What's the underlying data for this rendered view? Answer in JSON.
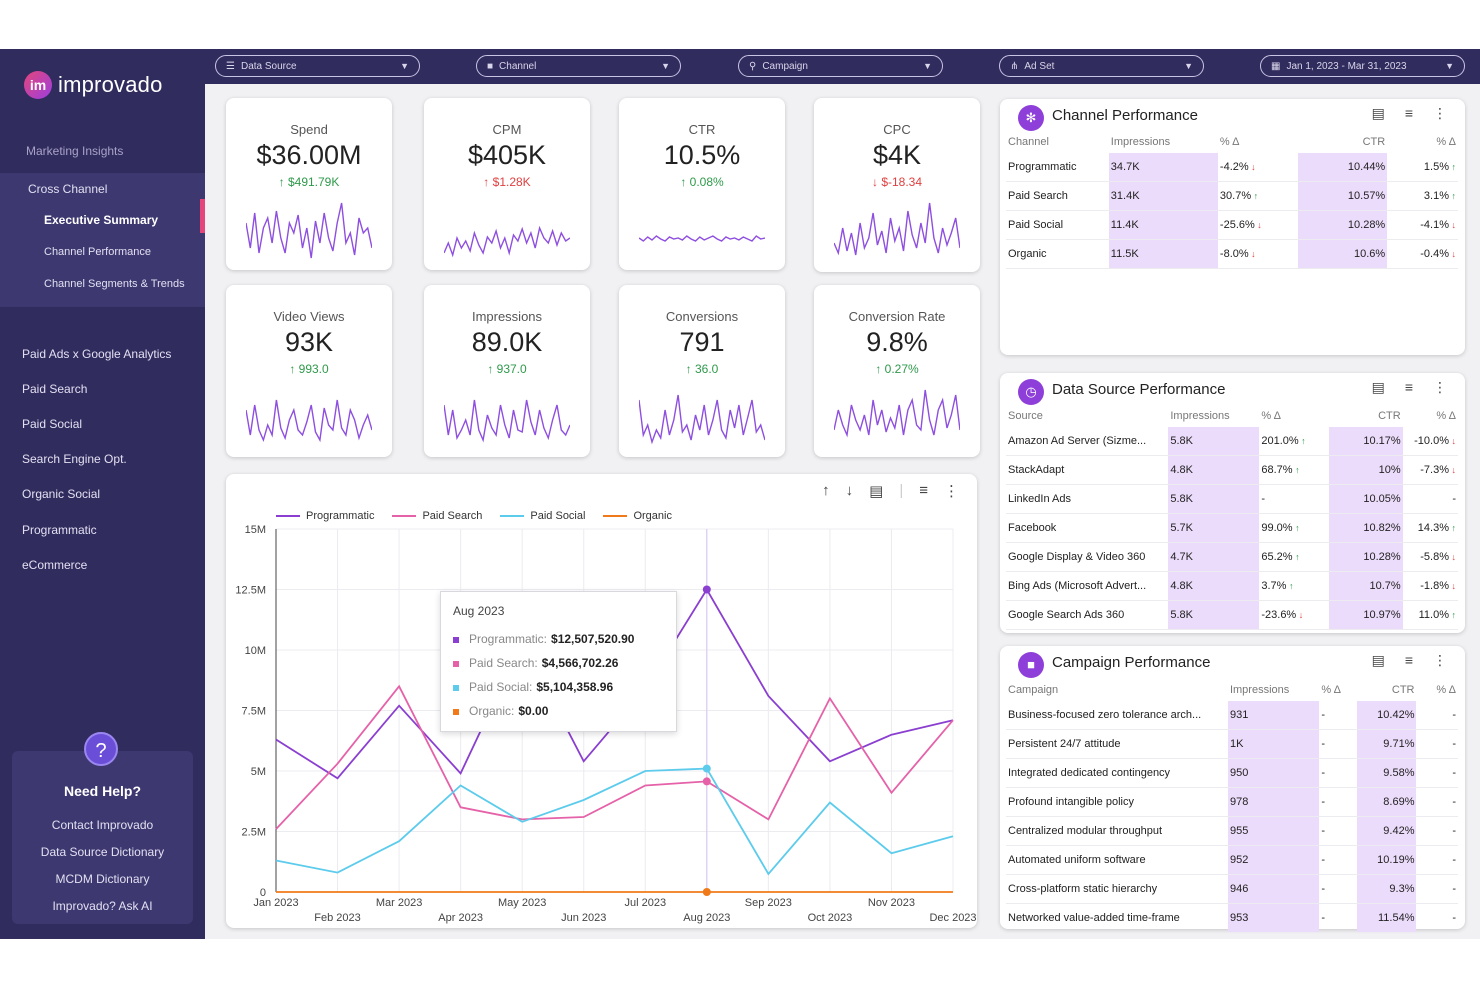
{
  "brand": {
    "logo_mark": "im",
    "name": "improvado"
  },
  "sidebar": {
    "section_title": "Marketing Insights",
    "group_label": "Cross Channel",
    "sub_items": [
      "Executive Summary",
      "Channel Performance",
      "Channel Segments & Trends"
    ],
    "items": [
      "Paid Ads x Google Analytics",
      "Paid Search",
      "Paid Social",
      "Search Engine Opt.",
      "Organic Social",
      "Programmatic",
      "eCommerce"
    ],
    "help": {
      "icon": "?",
      "title": "Need Help?",
      "links": [
        "Contact Improvado",
        "Data Source Dictionary",
        "MCDM Dictionary",
        "Improvado? Ask AI"
      ]
    }
  },
  "filters": {
    "data_source": "Data Source",
    "channel": "Channel",
    "campaign": "Campaign",
    "ad_set": "Ad Set",
    "date_range": "Jan 1, 2023 - Mar 31, 2023"
  },
  "kpis": [
    {
      "label": "Spend",
      "value": "$36.00M",
      "delta": "$491.79K",
      "direction": "up"
    },
    {
      "label": "CPM",
      "value": "$405K",
      "delta": "$1.28K",
      "direction": "up-bad"
    },
    {
      "label": "CTR",
      "value": "10.5%",
      "delta": "0.08%",
      "direction": "up"
    },
    {
      "label": "CPC",
      "value": "$4K",
      "delta": "$-18.34",
      "direction": "down"
    },
    {
      "label": "Video Views",
      "value": "93K",
      "delta": "993.0",
      "direction": "up"
    },
    {
      "label": "Impressions",
      "value": "89.0K",
      "delta": "937.0",
      "direction": "up"
    },
    {
      "label": "Conversions",
      "value": "791",
      "delta": "36.0",
      "direction": "up"
    },
    {
      "label": "Conversion Rate",
      "value": "9.8%",
      "delta": "0.27%",
      "direction": "up"
    }
  ],
  "colors": {
    "accent": "#8e3fd9",
    "sidebar": "#312c5e",
    "programmatic": "#8a3fd0",
    "paid_search": "#e561a8",
    "paid_social": "#5ccbec",
    "organic": "#f07a1a"
  },
  "chart_data": {
    "type": "line",
    "x": [
      "Jan 2023",
      "Feb 2023",
      "Mar 2023",
      "Apr 2023",
      "May 2023",
      "Jun 2023",
      "Jul 2023",
      "Aug 2023",
      "Sep 2023",
      "Oct 2023",
      "Nov 2023",
      "Dec 2023"
    ],
    "series": [
      {
        "name": "Programmatic",
        "values": [
          6.3,
          4.7,
          7.7,
          4.9,
          10.3,
          5.4,
          8.4,
          12.5,
          8.1,
          5.4,
          6.5,
          7.1
        ]
      },
      {
        "name": "Paid Search",
        "values": [
          2.6,
          5.3,
          8.5,
          3.5,
          3.0,
          3.1,
          4.4,
          4.57,
          3.0,
          8.0,
          4.1,
          7.1
        ]
      },
      {
        "name": "Paid Social",
        "values": [
          1.3,
          0.8,
          2.1,
          4.4,
          2.9,
          3.8,
          5.0,
          5.1,
          0.75,
          3.7,
          1.6,
          2.3
        ]
      },
      {
        "name": "Organic",
        "values": [
          0,
          0,
          0,
          0,
          0,
          0,
          0,
          0,
          0,
          0,
          0,
          0
        ]
      }
    ],
    "y_ticks": [
      "0",
      "2.5M",
      "5M",
      "7.5M",
      "10M",
      "12.5M",
      "15M"
    ],
    "ylim": [
      0,
      15
    ],
    "legend": "top",
    "grid": true,
    "tooltip": {
      "title": "Aug 2023",
      "rows": [
        {
          "label": "Programmatic:",
          "value": "$12,507,520.90"
        },
        {
          "label": "Paid Search:",
          "value": "$4,566,702.26"
        },
        {
          "label": "Paid Social:",
          "value": "$5,104,358.96"
        },
        {
          "label": "Organic:",
          "value": "$0.00"
        }
      ]
    }
  },
  "channel_table": {
    "title": "Channel Performance",
    "headers": [
      "Channel",
      "Impressions",
      "% Δ",
      "CTR",
      "% Δ"
    ],
    "rows": [
      [
        "Programmatic",
        "34.7K",
        "-4.2%",
        "10.44%",
        "1.5%"
      ],
      [
        "Paid Search",
        "31.4K",
        "30.7%",
        "10.57%",
        "3.1%"
      ],
      [
        "Paid Social",
        "11.4K",
        "-25.6%",
        "10.28%",
        "-4.1%"
      ],
      [
        "Organic",
        "11.5K",
        "-8.0%",
        "10.6%",
        "-0.4%"
      ]
    ]
  },
  "source_table": {
    "title": "Data Source Performance",
    "headers": [
      "Source",
      "Impressions",
      "% Δ",
      "CTR",
      "% Δ"
    ],
    "rows": [
      [
        "Amazon Ad Server (Sizme...",
        "5.8K",
        "201.0%",
        "10.17%",
        "-10.0%"
      ],
      [
        "StackAdapt",
        "4.8K",
        "68.7%",
        "10%",
        "-7.3%"
      ],
      [
        "LinkedIn Ads",
        "5.8K",
        "-",
        "10.05%",
        "-"
      ],
      [
        "Facebook",
        "5.7K",
        "99.0%",
        "10.82%",
        "14.3%"
      ],
      [
        "Google Display & Video 360",
        "4.7K",
        "65.2%",
        "10.28%",
        "-5.8%"
      ],
      [
        "Bing Ads (Microsoft Advert...",
        "4.8K",
        "3.7%",
        "10.7%",
        "-1.8%"
      ],
      [
        "Google Search Ads 360",
        "5.8K",
        "-23.6%",
        "10.97%",
        "11.0%"
      ]
    ]
  },
  "campaign_table": {
    "title": "Campaign Performance",
    "headers": [
      "Campaign",
      "Impressions",
      "% Δ",
      "CTR",
      "% Δ"
    ],
    "rows": [
      [
        "Business-focused zero tolerance arch...",
        "931",
        "-",
        "10.42%",
        "-"
      ],
      [
        "Persistent 24/7 attitude",
        "1K",
        "-",
        "9.71%",
        "-"
      ],
      [
        "Integrated dedicated contingency",
        "950",
        "-",
        "9.58%",
        "-"
      ],
      [
        "Profound intangible policy",
        "978",
        "-",
        "8.69%",
        "-"
      ],
      [
        "Centralized modular throughput",
        "955",
        "-",
        "9.42%",
        "-"
      ],
      [
        "Automated uniform software",
        "952",
        "-",
        "10.19%",
        "-"
      ],
      [
        "Cross-platform static hierarchy",
        "946",
        "-",
        "9.3%",
        "-"
      ],
      [
        "Networked value-added time-frame",
        "953",
        "-",
        "11.54%",
        "-"
      ]
    ]
  }
}
